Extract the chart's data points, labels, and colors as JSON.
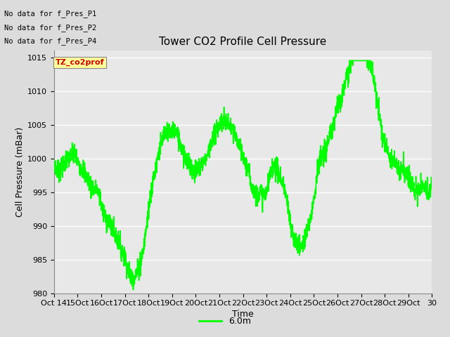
{
  "title": "Tower CO2 Profile Cell Pressure",
  "xlabel": "Time",
  "ylabel": "Cell Pressure (mBar)",
  "ylim": [
    980,
    1016
  ],
  "yticks": [
    980,
    985,
    990,
    995,
    1000,
    1005,
    1010,
    1015
  ],
  "x_start": 14,
  "x_end": 30,
  "xtick_labels": [
    "Oct 14",
    "15Oct",
    "16Oct",
    "17Oct",
    "18Oct",
    "19Oct",
    "20Oct",
    "21Oct",
    "22Oct",
    "23Oct",
    "24Oct",
    "25Oct",
    "26Oct",
    "27Oct",
    "28Oct",
    "29Oct",
    "30"
  ],
  "xtick_positions": [
    14,
    15,
    16,
    17,
    18,
    19,
    20,
    21,
    22,
    23,
    24,
    25,
    26,
    27,
    28,
    29,
    30
  ],
  "line_color": "#00FF00",
  "line_width": 1.2,
  "legend_label": "6.0m",
  "bg_color": "#E0E0E0",
  "plot_bg_color": "#E8E8E8",
  "annotations": [
    "No data for f_Pres_P1",
    "No data for f_Pres_P2",
    "No data for f_Pres_P4"
  ],
  "legend_box_label": "TZ_co2prof",
  "legend_box_color": "#FFFF99",
  "legend_box_text_color": "#CC0000",
  "title_fontsize": 11,
  "axis_fontsize": 9,
  "tick_fontsize": 8
}
